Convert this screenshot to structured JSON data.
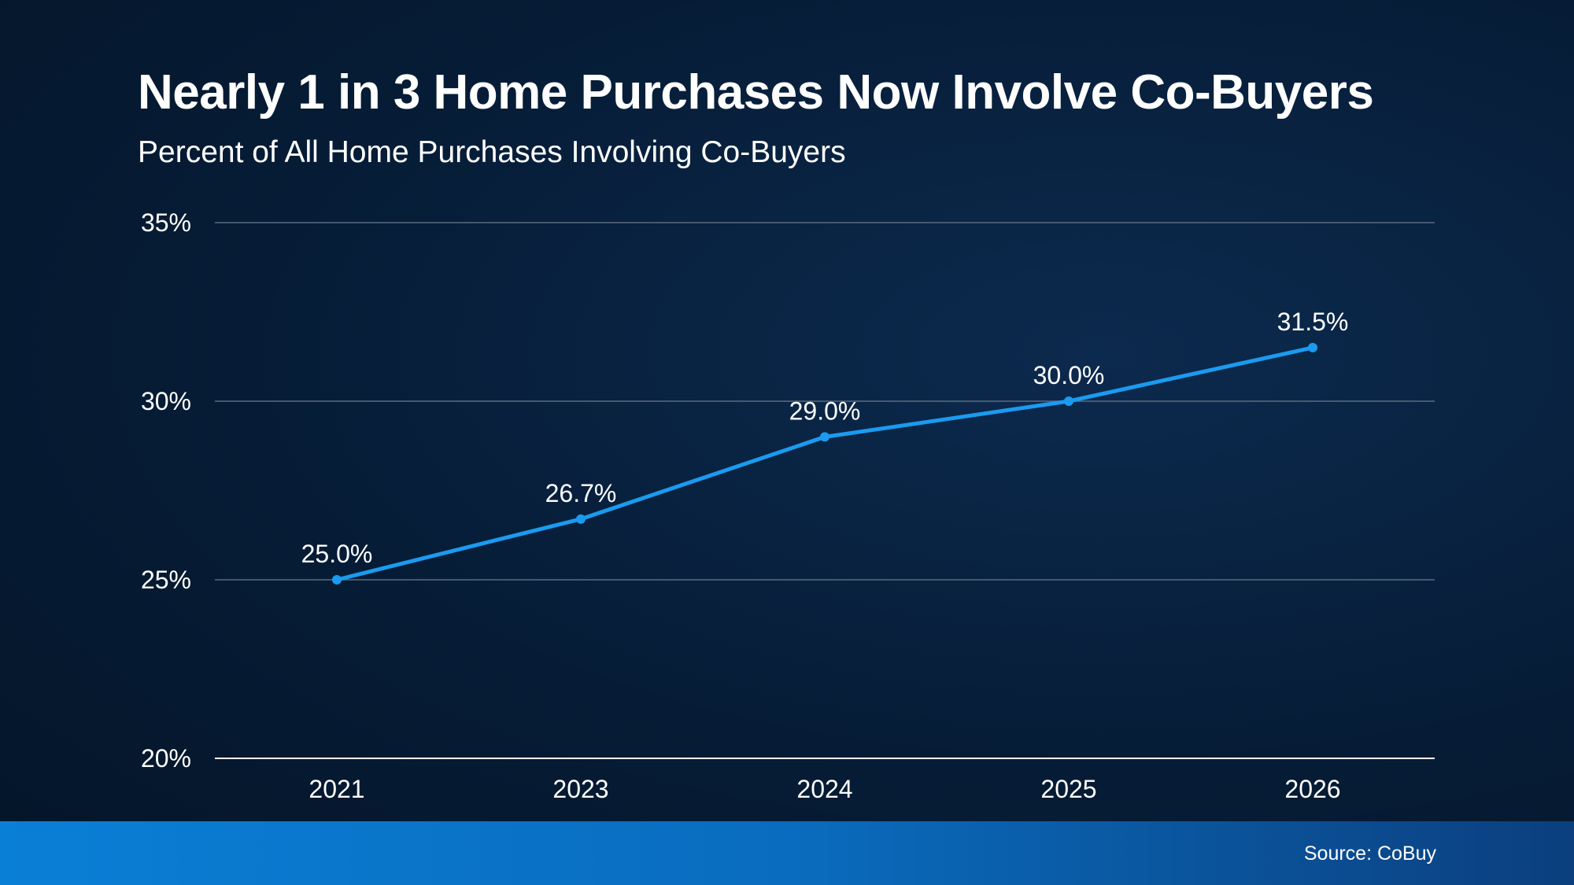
{
  "title": "Nearly 1 in 3 Home Purchases Now Involve Co-Buyers",
  "subtitle": "Percent of All Home Purchases Involving Co-Buyers",
  "source": "Source: CoBuy",
  "colors": {
    "line": "#1a9bf0",
    "gridline": "#5a6b80",
    "baseline": "#ffffff",
    "footer_start": "#0a7fd6",
    "footer_end": "#0b3f7e"
  },
  "chart_data": {
    "type": "line",
    "categories": [
      "2021",
      "2023",
      "2024",
      "2025",
      "2026"
    ],
    "series": [
      {
        "values": [
          25.0,
          26.7,
          29.0,
          30.0,
          31.5
        ],
        "data_labels": [
          "25.0%",
          "26.7%",
          "29.0%",
          "30.0%",
          "31.5%"
        ]
      }
    ],
    "ylim": [
      20,
      35
    ],
    "yticks": [
      20,
      25,
      30,
      35
    ],
    "ytick_labels": [
      "20%",
      "25%",
      "30%",
      "35%"
    ],
    "grid": true,
    "legend": "none"
  }
}
